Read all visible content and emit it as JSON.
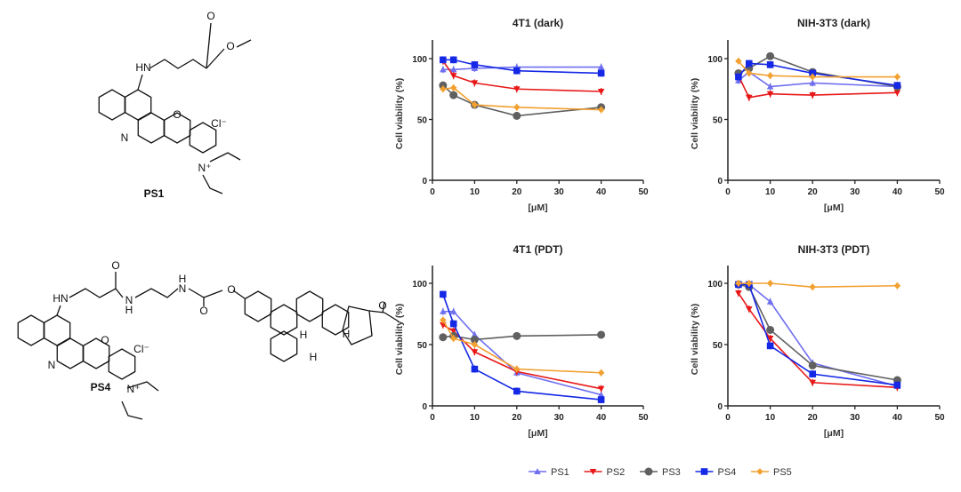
{
  "molecules": {
    "ps1": {
      "label": "PS1",
      "counterion": "Cl⁻",
      "atoms": [
        "HN",
        "O",
        "O",
        "O",
        "N",
        "N⁺"
      ]
    },
    "ps4": {
      "label": "PS4",
      "counterion": "Cl⁻",
      "atoms": [
        "HN",
        "O",
        "N",
        "H",
        "H",
        "O",
        "O",
        "O",
        "N",
        "N⁺",
        "H",
        "H",
        "H",
        "O"
      ]
    }
  },
  "legend": [
    "PS1",
    "PS2",
    "PS3",
    "PS4",
    "PS5"
  ],
  "colors": {
    "PS1": "#6f6ff0",
    "PS2": "#e81818",
    "PS3": "#606060",
    "PS4": "#1428e6",
    "PS5": "#f2a030"
  },
  "markers": {
    "PS1": "triangle-up",
    "PS2": "triangle-down",
    "PS3": "circle",
    "PS4": "square",
    "PS5": "diamond"
  },
  "chart_data": [
    {
      "type": "line",
      "title": "4T1 (dark)",
      "xlabel": "[μM]",
      "ylabel": "Cell viability (%)",
      "xlim": [
        0,
        50
      ],
      "ylim": [
        0,
        115
      ],
      "xticks": [
        0,
        10,
        20,
        30,
        40,
        50
      ],
      "yticks": [
        0,
        50,
        100
      ],
      "x": [
        2.5,
        5,
        10,
        20,
        40
      ],
      "series": [
        {
          "name": "PS1",
          "values": [
            91,
            91,
            92,
            93,
            93
          ]
        },
        {
          "name": "PS2",
          "values": [
            98,
            86,
            80,
            75,
            73
          ]
        },
        {
          "name": "PS3",
          "values": [
            78,
            70,
            62,
            53,
            60
          ]
        },
        {
          "name": "PS4",
          "values": [
            99,
            99,
            95,
            90,
            88
          ]
        },
        {
          "name": "PS5",
          "values": [
            75,
            76,
            62,
            60,
            58
          ]
        }
      ]
    },
    {
      "type": "line",
      "title": "NIH-3T3 (dark)",
      "xlabel": "[μM]",
      "ylabel": "Cell viability (%)",
      "xlim": [
        0,
        50
      ],
      "ylim": [
        0,
        115
      ],
      "xticks": [
        0,
        10,
        20,
        30,
        40,
        50
      ],
      "yticks": [
        0,
        50,
        100
      ],
      "x": [
        2.5,
        5,
        10,
        20,
        40
      ],
      "series": [
        {
          "name": "PS1",
          "values": [
            82,
            89,
            77,
            80,
            77
          ]
        },
        {
          "name": "PS2",
          "values": [
            86,
            68,
            71,
            70,
            72
          ]
        },
        {
          "name": "PS3",
          "values": [
            88,
            92,
            102,
            89,
            77
          ]
        },
        {
          "name": "PS4",
          "values": [
            85,
            96,
            95,
            88,
            78
          ]
        },
        {
          "name": "PS5",
          "values": [
            98,
            88,
            86,
            85,
            85
          ]
        }
      ]
    },
    {
      "type": "line",
      "title": "4T1 (PDT)",
      "xlabel": "[μM]",
      "ylabel": "Cell viability (%)",
      "xlim": [
        0,
        50
      ],
      "ylim": [
        0,
        115
      ],
      "xticks": [
        0,
        10,
        20,
        30,
        40,
        50
      ],
      "yticks": [
        0,
        50,
        100
      ],
      "x": [
        2.5,
        5,
        10,
        20,
        40
      ],
      "series": [
        {
          "name": "PS1",
          "values": [
            77,
            77,
            58,
            27,
            9
          ]
        },
        {
          "name": "PS2",
          "values": [
            66,
            61,
            44,
            28,
            14
          ]
        },
        {
          "name": "PS3",
          "values": [
            56,
            57,
            54,
            57,
            58
          ]
        },
        {
          "name": "PS4",
          "values": [
            91,
            67,
            30,
            12,
            5
          ]
        },
        {
          "name": "PS5",
          "values": [
            70,
            55,
            50,
            30,
            27
          ]
        }
      ]
    },
    {
      "type": "line",
      "title": "NIH-3T3 (PDT)",
      "xlabel": "[μM]",
      "ylabel": "Cell viability (%)",
      "xlim": [
        0,
        50
      ],
      "ylim": [
        0,
        115
      ],
      "xticks": [
        0,
        10,
        20,
        30,
        40,
        50
      ],
      "yticks": [
        0,
        50,
        100
      ],
      "x": [
        2.5,
        5,
        10,
        20,
        40
      ],
      "series": [
        {
          "name": "PS1",
          "values": [
            99,
            99,
            85,
            35,
            16
          ]
        },
        {
          "name": "PS2",
          "values": [
            92,
            79,
            55,
            19,
            15
          ]
        },
        {
          "name": "PS3",
          "values": [
            99,
            97,
            62,
            33,
            21
          ]
        },
        {
          "name": "PS4",
          "values": [
            99,
            99,
            49,
            26,
            17
          ]
        },
        {
          "name": "PS5",
          "values": [
            100,
            100,
            100,
            97,
            98
          ]
        }
      ]
    }
  ]
}
